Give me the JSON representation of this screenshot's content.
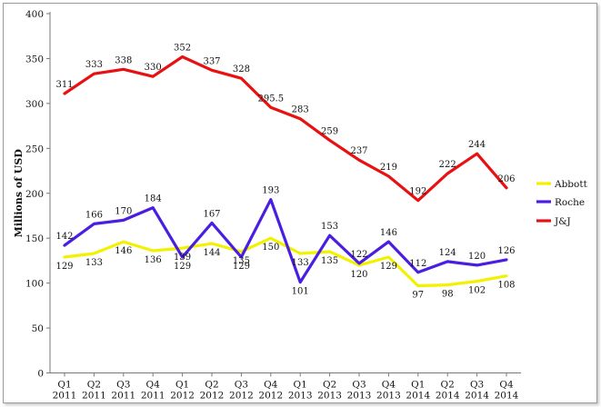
{
  "chart_data": {
    "type": "line",
    "title": "",
    "xlabel": "",
    "ylabel": "Millions of USD",
    "ylim": [
      0,
      400
    ],
    "yticks": [
      0,
      50,
      100,
      150,
      200,
      250,
      300,
      350,
      400
    ],
    "grid": false,
    "legend_position": "right",
    "categories": [
      {
        "q": "Q1",
        "y": "2011"
      },
      {
        "q": "Q2",
        "y": "2011"
      },
      {
        "q": "Q3",
        "y": "2011"
      },
      {
        "q": "Q4",
        "y": "2011"
      },
      {
        "q": "Q1",
        "y": "2012"
      },
      {
        "q": "Q2",
        "y": "2012"
      },
      {
        "q": "Q3",
        "y": "2012"
      },
      {
        "q": "Q4",
        "y": "2012"
      },
      {
        "q": "Q1",
        "y": "2013"
      },
      {
        "q": "Q2",
        "y": "2013"
      },
      {
        "q": "Q3",
        "y": "2013"
      },
      {
        "q": "Q4",
        "y": "2013"
      },
      {
        "q": "Q1",
        "y": "2014"
      },
      {
        "q": "Q2",
        "y": "2014"
      },
      {
        "q": "Q3",
        "y": "2014"
      },
      {
        "q": "Q4",
        "y": "2014"
      }
    ],
    "series": [
      {
        "name": "Abbott",
        "color": "#f2f200",
        "values": [
          129,
          133,
          146,
          136,
          139,
          144,
          135,
          150,
          133,
          135,
          120,
          129,
          97,
          98,
          102,
          108
        ],
        "labels": [
          "129",
          "133",
          "146",
          "136",
          "139",
          "144",
          "135",
          "150",
          "133",
          "135",
          "120",
          "129",
          "97",
          "98",
          "102",
          "108"
        ]
      },
      {
        "name": "Roche",
        "color": "#4a1ee0",
        "values": [
          142,
          166,
          170,
          184,
          129,
          167,
          129,
          193,
          101,
          153,
          122,
          146,
          112,
          124,
          120,
          126
        ],
        "labels": [
          "142",
          "166",
          "170",
          "184",
          "129",
          "167",
          "129",
          "193",
          "101",
          "153",
          "122",
          "146",
          "112",
          "124",
          "120",
          "126"
        ]
      },
      {
        "name": "J&J",
        "color": "#e81010",
        "values": [
          311,
          333,
          338,
          330,
          352,
          337,
          328,
          295.5,
          283,
          259,
          237,
          219,
          192,
          222,
          244,
          206
        ],
        "labels": [
          "311",
          "333",
          "338",
          "330",
          "352",
          "337",
          "328",
          "295.5",
          "283",
          "259",
          "237",
          "219",
          "192",
          "222",
          "244",
          "206"
        ]
      }
    ]
  }
}
